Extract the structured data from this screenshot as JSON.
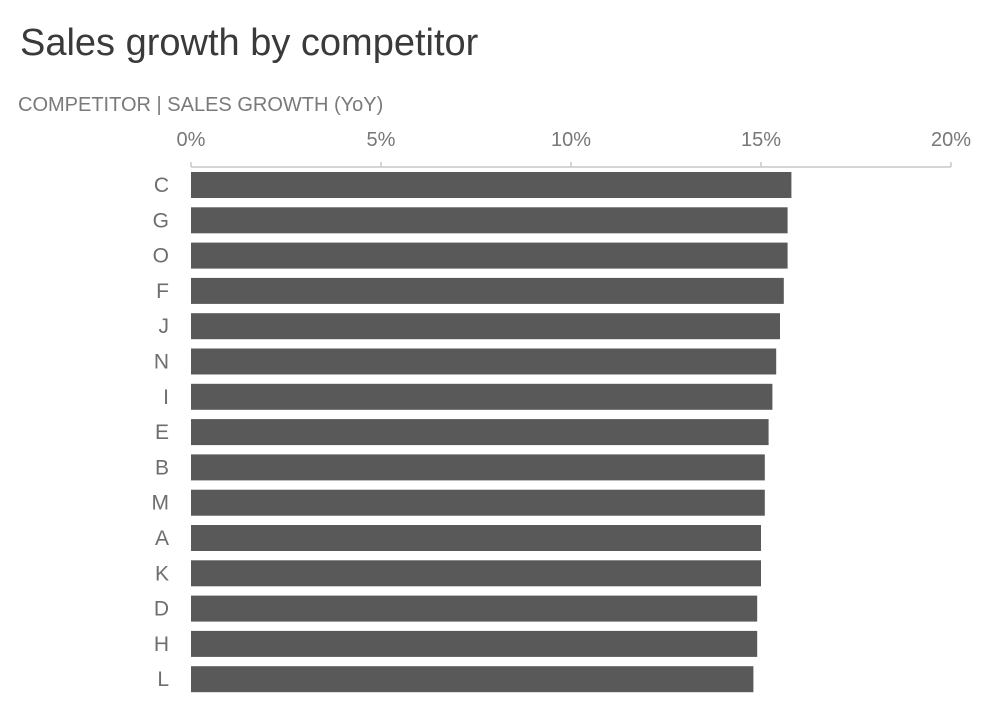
{
  "chart_data": {
    "type": "bar",
    "orientation": "horizontal",
    "title": "Sales growth by competitor",
    "subtitle": "COMPETITOR  |  SALES GROWTH (YoY)",
    "categories": [
      "C",
      "G",
      "O",
      "F",
      "J",
      "N",
      "I",
      "E",
      "B",
      "M",
      "A",
      "K",
      "D",
      "H",
      "L"
    ],
    "values": [
      15.8,
      15.7,
      15.7,
      15.6,
      15.5,
      15.4,
      15.3,
      15.2,
      15.1,
      15.1,
      15.0,
      15.0,
      14.9,
      14.9,
      14.8
    ],
    "value_unit": "%",
    "xlim": [
      0,
      20
    ],
    "xticks": [
      0,
      5,
      10,
      15,
      20
    ],
    "xtick_labels": [
      "0%",
      "5%",
      "10%",
      "15%",
      "20%"
    ],
    "axis_position": "top",
    "grid": false,
    "legend": "none",
    "bar_color": "#595959"
  }
}
